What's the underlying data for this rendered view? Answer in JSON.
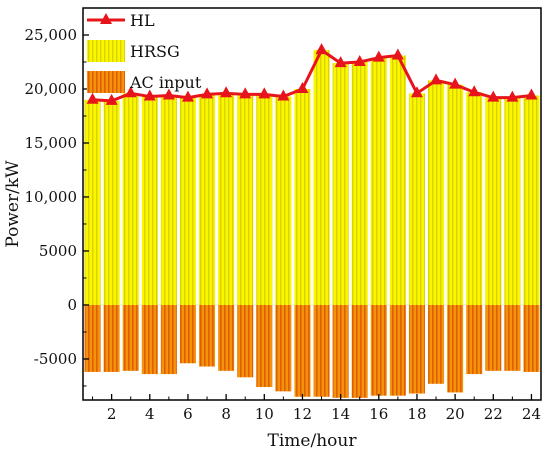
{
  "chart_data": {
    "type": "bar",
    "xlabel": "Time/hour",
    "ylabel": "Power/kW",
    "xlim": [
      0.5,
      24.5
    ],
    "ylim": [
      -8800,
      27500
    ],
    "x_ticks": [
      2,
      4,
      6,
      8,
      10,
      12,
      14,
      16,
      18,
      20,
      22,
      24
    ],
    "x_tick_labels": [
      "2",
      "4",
      "6",
      "8",
      "10",
      "12",
      "14",
      "16",
      "18",
      "20",
      "22",
      "24"
    ],
    "y_ticks": [
      -5000,
      0,
      5000,
      10000,
      15000,
      20000,
      25000
    ],
    "y_tick_labels": [
      "-5000",
      "0",
      "5000",
      "10,000",
      "15,000",
      "20,000",
      "25,000"
    ],
    "legend_position": "top-left",
    "x": [
      1,
      2,
      3,
      4,
      5,
      6,
      7,
      8,
      9,
      10,
      11,
      12,
      13,
      14,
      15,
      16,
      17,
      18,
      19,
      20,
      21,
      22,
      23,
      24
    ],
    "series": [
      {
        "name": "HL",
        "type": "line",
        "color": "#e8141b",
        "marker": "triangle",
        "values": [
          19000,
          18900,
          19600,
          19300,
          19400,
          19200,
          19500,
          19600,
          19500,
          19500,
          19300,
          20000,
          23600,
          22400,
          22500,
          22900,
          23100,
          19600,
          20800,
          20400,
          19700,
          19200,
          19200,
          19400
        ]
      },
      {
        "name": "HRSG",
        "type": "bar",
        "color": "#fbf600",
        "hatch_color": "#d9d400",
        "values": [
          19000,
          18900,
          19600,
          19300,
          19400,
          19200,
          19500,
          19600,
          19500,
          19500,
          19300,
          20000,
          23600,
          22400,
          22500,
          22900,
          23100,
          19600,
          20800,
          20400,
          19700,
          19200,
          19200,
          19400
        ]
      },
      {
        "name": "AC input",
        "type": "bar",
        "color": "#f5920d",
        "hatch_color": "#e06000",
        "values": [
          -6200,
          -6200,
          -6100,
          -6400,
          -6400,
          -5400,
          -5700,
          -6100,
          -6700,
          -7600,
          -8000,
          -8500,
          -8500,
          -8600,
          -8600,
          -8400,
          -8400,
          -8200,
          -7300,
          -8100,
          -6400,
          -6100,
          -6100,
          -6200
        ]
      }
    ]
  }
}
